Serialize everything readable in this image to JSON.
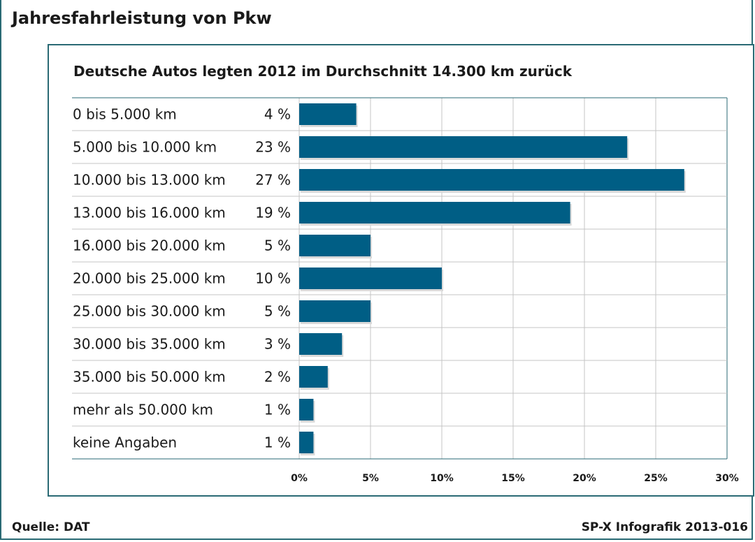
{
  "header": {
    "title": "Jahresfahrleistung von Pkw"
  },
  "footer": {
    "source": "Quelle: DAT",
    "credit": "SP-X Infografik 2013-016"
  },
  "chart_data": {
    "type": "bar",
    "orientation": "horizontal",
    "title": "Deutsche Autos legten 2012 im Durchschnitt 14.300 km zurück",
    "categories": [
      "0 bis 5.000 km",
      "5.000 bis 10.000 km",
      "10.000 bis 13.000 km",
      "13.000 bis 16.000 km",
      "16.000 bis 20.000 km",
      "20.000 bis 25.000 km",
      "25.000 bis 30.000 km",
      "30.000 bis 35.000 km",
      "35.000 bis 50.000 km",
      "mehr als 50.000 km",
      "keine Angaben"
    ],
    "values": [
      4,
      23,
      27,
      19,
      5,
      10,
      5,
      3,
      2,
      1,
      1
    ],
    "value_labels": [
      "4 %",
      "23 %",
      "27 %",
      "19 %",
      "5 %",
      "10 %",
      "5 %",
      "3 %",
      "2 %",
      "1 %",
      "1 %"
    ],
    "xlim": [
      0,
      30
    ],
    "xticks": [
      0,
      5,
      10,
      15,
      20,
      25,
      30
    ],
    "xtick_labels": [
      "0%",
      "5%",
      "10%",
      "15%",
      "20%",
      "25%",
      "30%"
    ],
    "grid": true,
    "bar_color": "#005e85"
  }
}
